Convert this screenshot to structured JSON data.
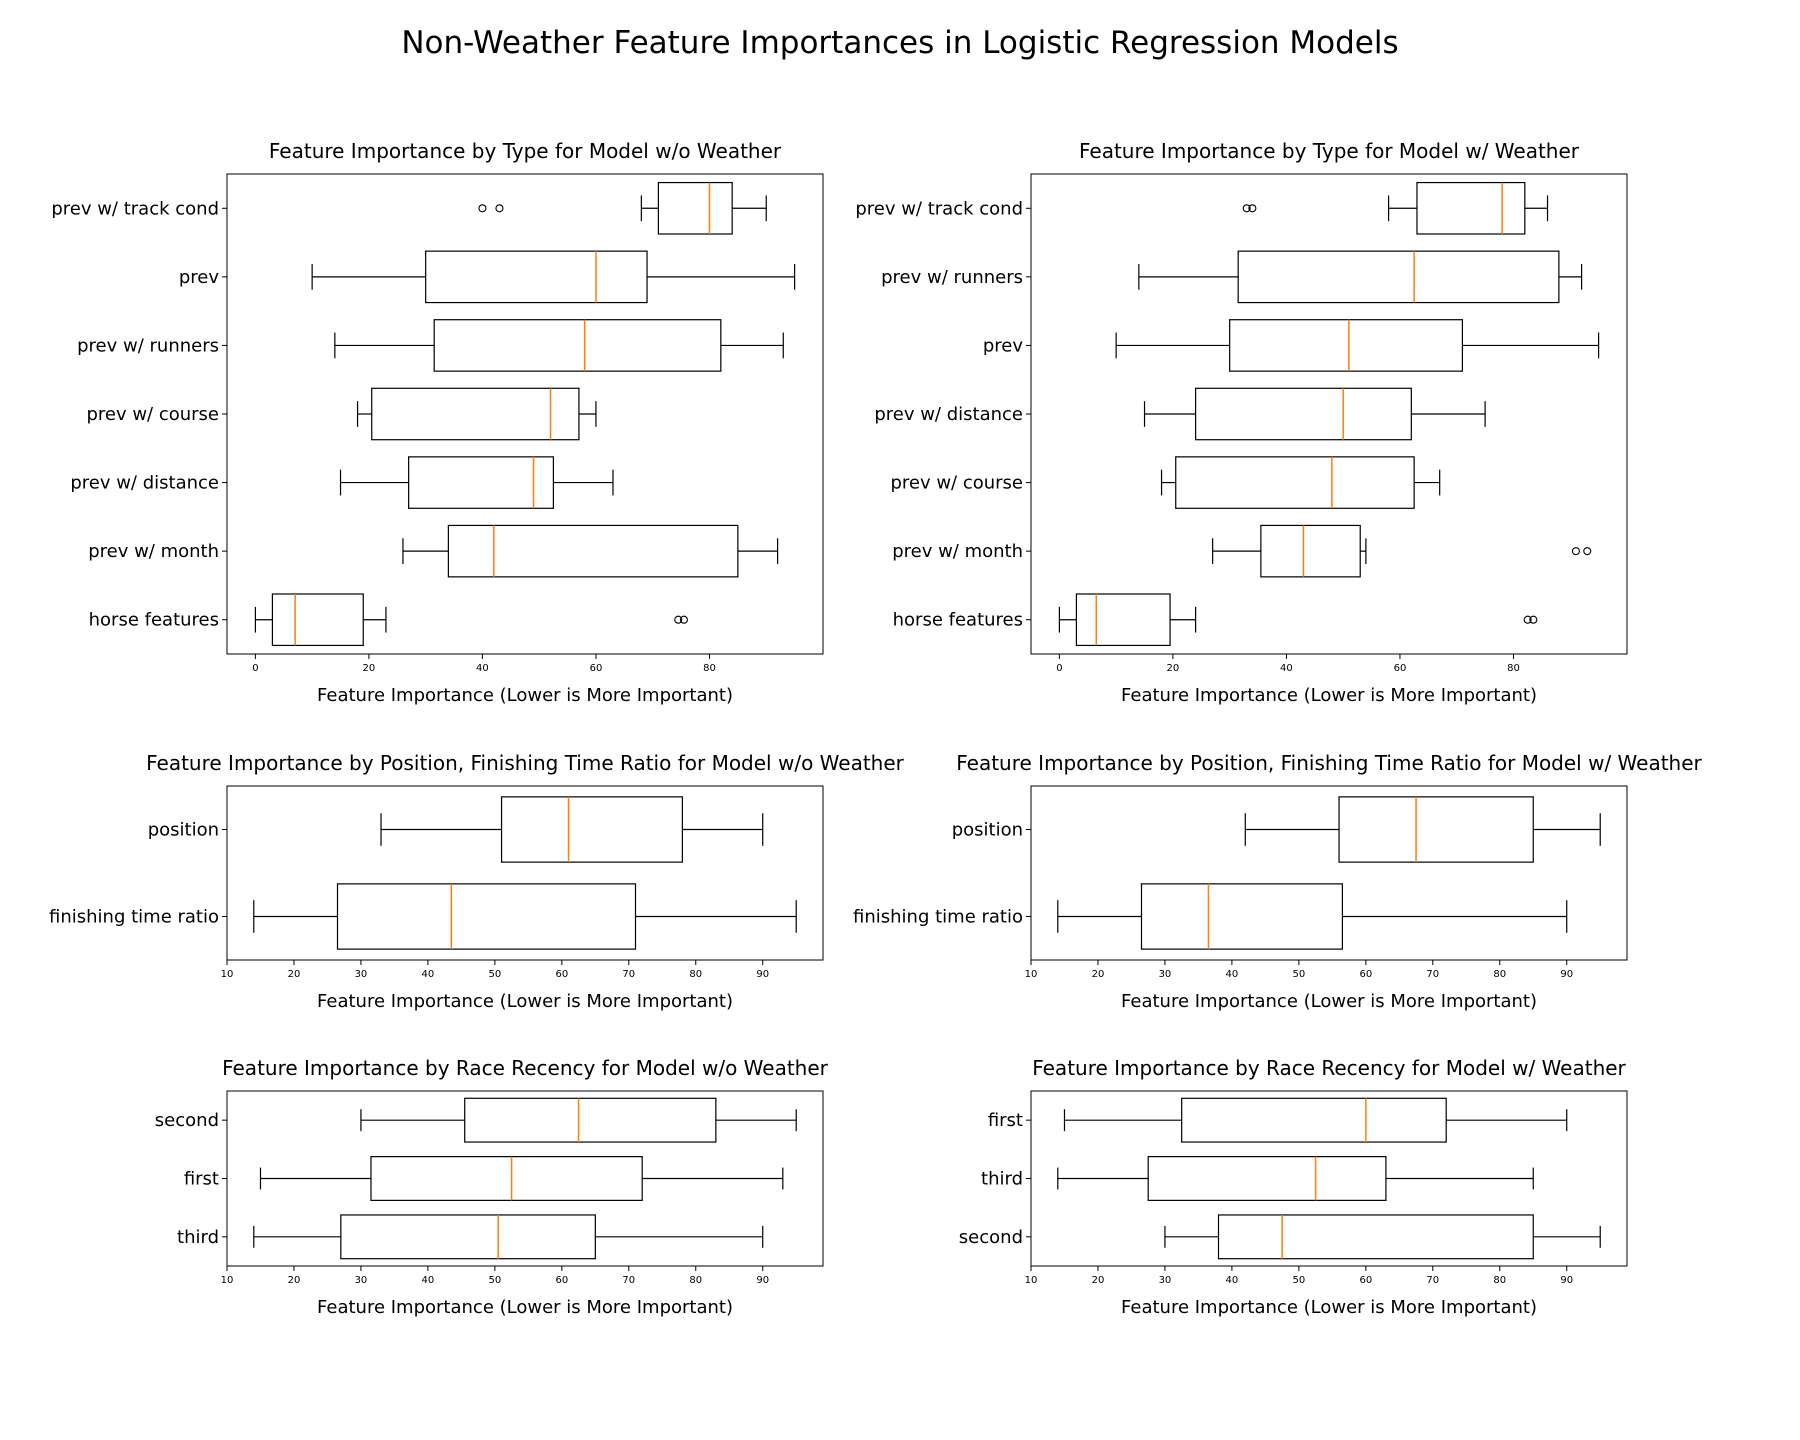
{
  "figure": {
    "title": "Non-Weather Feature Importances in Logistic Regression Models"
  },
  "chart_data": [
    {
      "type": "boxplot",
      "orientation": "horizontal",
      "title": "Feature Importance by Type for Model w/o Weather",
      "xlabel": "Feature Importance (Lower is More Important)",
      "xlim": [
        -5,
        100
      ],
      "xticks": [
        0,
        20,
        40,
        60,
        80
      ],
      "categories": [
        "prev w/ track cond",
        "prev",
        "prev w/ runners",
        "prev w/ course",
        "prev w/ distance",
        "prev w/ month",
        "horse features"
      ],
      "boxes": [
        {
          "whislo": 68,
          "q1": 71,
          "med": 80,
          "q3": 84,
          "whishi": 90,
          "fliers": [
            40,
            43
          ]
        },
        {
          "whislo": 10,
          "q1": 30,
          "med": 60,
          "q3": 69,
          "whishi": 95,
          "fliers": []
        },
        {
          "whislo": 14,
          "q1": 31.5,
          "med": 58,
          "q3": 82,
          "whishi": 93,
          "fliers": []
        },
        {
          "whislo": 18,
          "q1": 20.5,
          "med": 52,
          "q3": 57,
          "whishi": 60,
          "fliers": []
        },
        {
          "whislo": 15,
          "q1": 27,
          "med": 49,
          "q3": 52.5,
          "whishi": 63,
          "fliers": []
        },
        {
          "whislo": 26,
          "q1": 34,
          "med": 42,
          "q3": 85,
          "whishi": 92,
          "fliers": []
        },
        {
          "whislo": 0,
          "q1": 3,
          "med": 7,
          "q3": 19,
          "whishi": 23,
          "fliers": [
            74.5,
            75.5
          ]
        }
      ]
    },
    {
      "type": "boxplot",
      "orientation": "horizontal",
      "title": "Feature Importance by Type for Model w/ Weather",
      "xlabel": "Feature Importance (Lower is More Important)",
      "xlim": [
        -5,
        100
      ],
      "xticks": [
        0,
        20,
        40,
        60,
        80
      ],
      "categories": [
        "prev w/ track cond",
        "prev w/ runners",
        "prev",
        "prev w/ distance",
        "prev w/ course",
        "prev w/ month",
        "horse features"
      ],
      "boxes": [
        {
          "whislo": 58,
          "q1": 63,
          "med": 78,
          "q3": 82,
          "whishi": 86,
          "fliers": [
            33,
            34
          ]
        },
        {
          "whislo": 14,
          "q1": 31.5,
          "med": 62.5,
          "q3": 88,
          "whishi": 92,
          "fliers": []
        },
        {
          "whislo": 10,
          "q1": 30,
          "med": 51,
          "q3": 71,
          "whishi": 95,
          "fliers": []
        },
        {
          "whislo": 15,
          "q1": 24,
          "med": 50,
          "q3": 62,
          "whishi": 75,
          "fliers": []
        },
        {
          "whislo": 18,
          "q1": 20.5,
          "med": 48,
          "q3": 62.5,
          "whishi": 67,
          "fliers": []
        },
        {
          "whislo": 27,
          "q1": 35.5,
          "med": 43,
          "q3": 53,
          "whishi": 54,
          "fliers": [
            91,
            93
          ]
        },
        {
          "whislo": 0,
          "q1": 3,
          "med": 6.5,
          "q3": 19.5,
          "whishi": 24,
          "fliers": [
            82.5,
            83.5
          ]
        }
      ]
    },
    {
      "type": "boxplot",
      "orientation": "horizontal",
      "title": "Feature Importance by Position, Finishing Time Ratio for Model w/o Weather",
      "xlabel": "Feature Importance (Lower is More Important)",
      "xlim": [
        10,
        99
      ],
      "xticks": [
        10,
        20,
        30,
        40,
        50,
        60,
        70,
        80,
        90
      ],
      "categories": [
        "position",
        "finishing time ratio"
      ],
      "boxes": [
        {
          "whislo": 33,
          "q1": 51,
          "med": 61,
          "q3": 78,
          "whishi": 90,
          "fliers": []
        },
        {
          "whislo": 14,
          "q1": 26.5,
          "med": 43.5,
          "q3": 71,
          "whishi": 95,
          "fliers": []
        }
      ]
    },
    {
      "type": "boxplot",
      "orientation": "horizontal",
      "title": "Feature Importance by Position, Finishing Time Ratio for Model w/ Weather",
      "xlabel": "Feature Importance (Lower is More Important)",
      "xlim": [
        10,
        99
      ],
      "xticks": [
        10,
        20,
        30,
        40,
        50,
        60,
        70,
        80,
        90
      ],
      "categories": [
        "position",
        "finishing time ratio"
      ],
      "boxes": [
        {
          "whislo": 42,
          "q1": 56,
          "med": 67.5,
          "q3": 85,
          "whishi": 95,
          "fliers": []
        },
        {
          "whislo": 14,
          "q1": 26.5,
          "med": 36.5,
          "q3": 56.5,
          "whishi": 90,
          "fliers": []
        }
      ]
    },
    {
      "type": "boxplot",
      "orientation": "horizontal",
      "title": "Feature Importance by Race Recency for Model w/o Weather",
      "xlabel": "Feature Importance (Lower is More Important)",
      "xlim": [
        10,
        99
      ],
      "xticks": [
        10,
        20,
        30,
        40,
        50,
        60,
        70,
        80,
        90
      ],
      "categories": [
        "second",
        "first",
        "third"
      ],
      "boxes": [
        {
          "whislo": 30,
          "q1": 45.5,
          "med": 62.5,
          "q3": 83,
          "whishi": 95,
          "fliers": []
        },
        {
          "whislo": 15,
          "q1": 31.5,
          "med": 52.5,
          "q3": 72,
          "whishi": 93,
          "fliers": []
        },
        {
          "whislo": 14,
          "q1": 27,
          "med": 50.5,
          "q3": 65,
          "whishi": 90,
          "fliers": []
        }
      ]
    },
    {
      "type": "boxplot",
      "orientation": "horizontal",
      "title": "Feature Importance by Race Recency for Model w/ Weather",
      "xlabel": "Feature Importance (Lower is More Important)",
      "xlim": [
        10,
        99
      ],
      "xticks": [
        10,
        20,
        30,
        40,
        50,
        60,
        70,
        80,
        90
      ],
      "categories": [
        "first",
        "third",
        "second"
      ],
      "boxes": [
        {
          "whislo": 15,
          "q1": 32.5,
          "med": 60,
          "q3": 72,
          "whishi": 90,
          "fliers": []
        },
        {
          "whislo": 14,
          "q1": 27.5,
          "med": 52.5,
          "q3": 63,
          "whishi": 85,
          "fliers": []
        },
        {
          "whislo": 30,
          "q1": 38,
          "med": 47.5,
          "q3": 85,
          "whishi": 95,
          "fliers": []
        }
      ]
    }
  ]
}
